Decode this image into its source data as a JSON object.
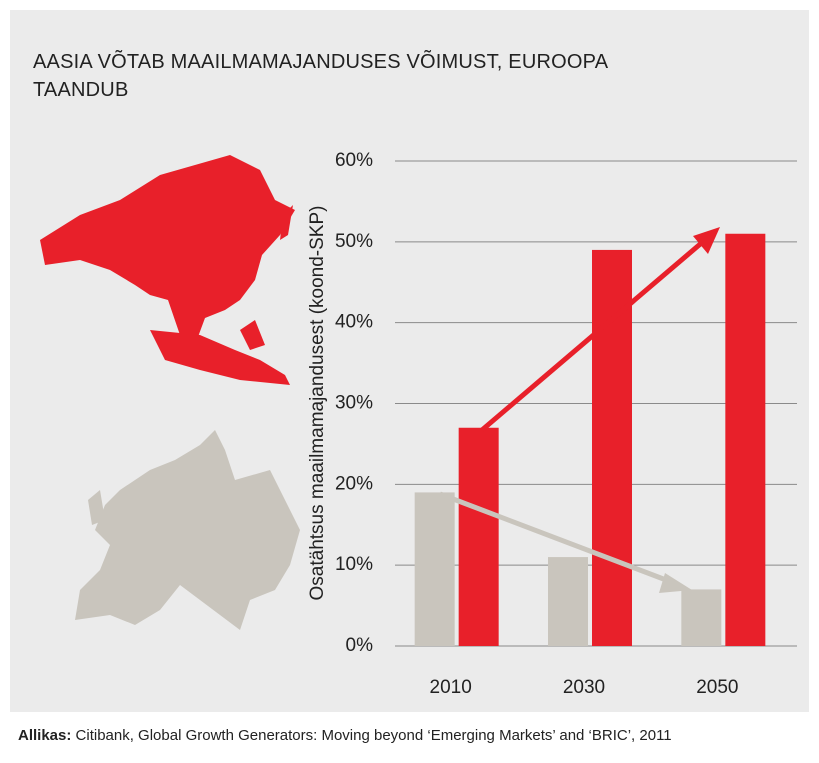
{
  "chart_data": {
    "type": "bar",
    "title": "AASIA VÕTAB MAAILMAMAJANDUSES VÕIMUST, EUROOPA TAANDUB",
    "ylabel": "Osatähtsus maailmamajandusest (koond-SKP)",
    "categories": [
      "2010",
      "2030",
      "2050"
    ],
    "series": [
      {
        "color": "#c9c5bd",
        "values": [
          19,
          11,
          7
        ]
      },
      {
        "color": "#e8202a",
        "values": [
          27,
          49,
          51
        ]
      }
    ],
    "ylim": [
      0,
      60
    ],
    "yticks": [
      {
        "value": 0,
        "label": "0%"
      },
      {
        "value": 10,
        "label": "10%"
      },
      {
        "value": 20,
        "label": "20%"
      },
      {
        "value": 30,
        "label": "30%"
      },
      {
        "value": 40,
        "label": "40%"
      },
      {
        "value": 50,
        "label": "50%"
      },
      {
        "value": 60,
        "label": "60%"
      }
    ],
    "grid": true,
    "source": {
      "label": "Allikas:",
      "text": "Citibank, Global Growth Generators: Moving beyond ‘Emerging Markets’ and ‘BRIC’, 2011"
    }
  }
}
